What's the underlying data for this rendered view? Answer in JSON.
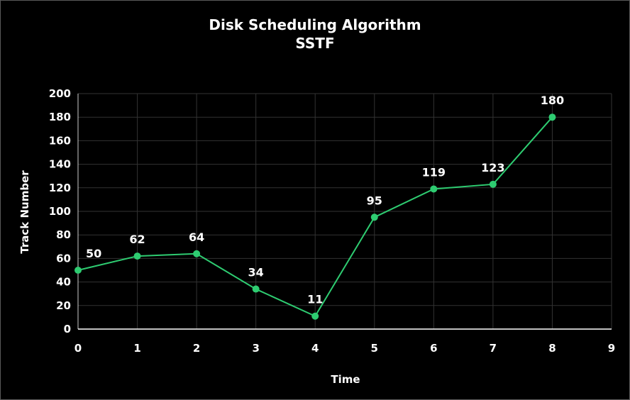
{
  "chart_data": {
    "type": "line",
    "title": "Disk Scheduling Algorithm",
    "subtitle": "SSTF",
    "xlabel": "Time",
    "ylabel": "Track Number",
    "x": [
      0,
      1,
      2,
      3,
      4,
      5,
      6,
      7,
      8
    ],
    "series": [
      {
        "values": [
          50,
          62,
          64,
          34,
          11,
          95,
          119,
          123,
          180
        ]
      }
    ],
    "xlim": [
      0,
      9
    ],
    "ylim": [
      0,
      200
    ],
    "xticks": [
      0,
      1,
      2,
      3,
      4,
      5,
      6,
      7,
      8,
      9
    ],
    "yticks": [
      0,
      20,
      40,
      60,
      80,
      100,
      120,
      140,
      160,
      180,
      200
    ],
    "grid": true,
    "line_color": "#2ecc71",
    "marker_color": "#2ecc71",
    "background": "#000000",
    "grid_color": "#333333"
  }
}
